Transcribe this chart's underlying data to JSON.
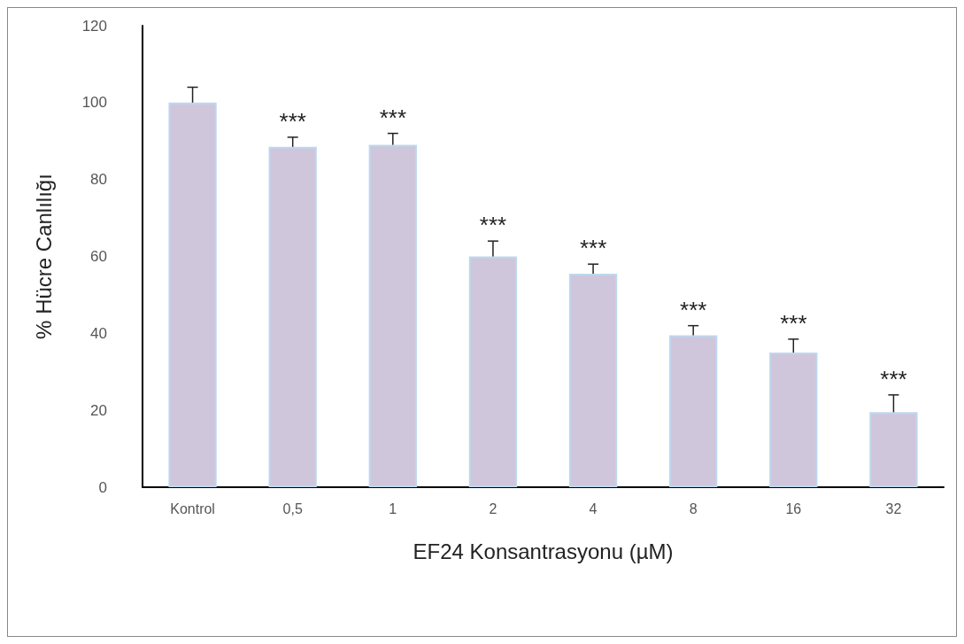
{
  "chart_data": {
    "type": "bar",
    "xlabel": "EF24 Konsantrasyonu (µM)",
    "ylabel": "% Hücre Canlılığı",
    "categories": [
      "Kontrol",
      "0,5",
      "1",
      "2",
      "4",
      "8",
      "16",
      "32"
    ],
    "values": [
      100,
      88.5,
      89,
      60,
      55.5,
      39.5,
      35,
      19.5
    ],
    "errors": [
      [
        100,
        104
      ],
      [
        88.5,
        91
      ],
      [
        89,
        92
      ],
      [
        60,
        64
      ],
      [
        55.5,
        58
      ],
      [
        39.5,
        42
      ],
      [
        35,
        38.5
      ],
      [
        19.5,
        24
      ]
    ],
    "color": "#cfc6dc",
    "ylim": [
      0,
      120
    ],
    "yticks": [
      0,
      20,
      40,
      60,
      80,
      100,
      120
    ],
    "grid": false,
    "annotations": [
      {
        "text": "***",
        "x": "0,5",
        "y": 88.5
      },
      {
        "text": "***",
        "x": "1",
        "y": 89
      },
      {
        "text": "***",
        "x": "2",
        "y": 60
      },
      {
        "text": "***",
        "x": "4",
        "y": 55.5
      },
      {
        "text": "***",
        "x": "8",
        "y": 39.5
      },
      {
        "text": "***",
        "x": "16",
        "y": 35
      },
      {
        "text": "***",
        "x": "32",
        "y": 19.5
      }
    ]
  }
}
